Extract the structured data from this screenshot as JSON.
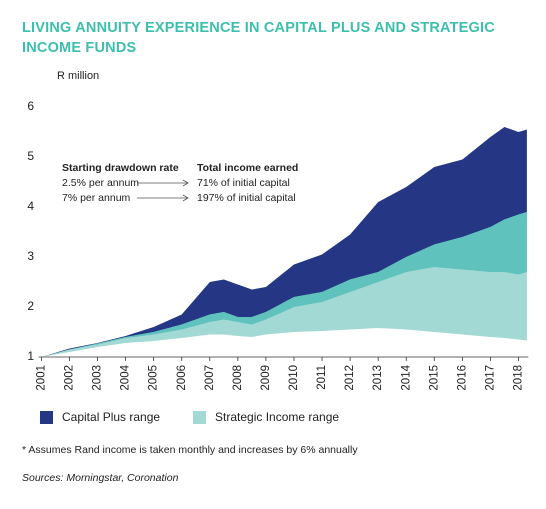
{
  "chart_data": {
    "type": "range-area",
    "title": [
      "LIVING ANNUITY EXPERIENCE IN CAPITAL PLUS AND STRATEGIC",
      "INCOME FUNDS"
    ],
    "y_label": "R million",
    "x": [
      2001,
      2002,
      2003,
      2004,
      2005,
      2006,
      2007,
      2007.5,
      2008,
      2008.5,
      2009,
      2010,
      2011,
      2012,
      2013,
      2014,
      2015,
      2016,
      2017,
      2017.5,
      2018,
      2018.3
    ],
    "series": [
      {
        "name": "Capital Plus range",
        "color": "#253685",
        "low": [
          1.0,
          1.15,
          1.25,
          1.38,
          1.45,
          1.55,
          1.7,
          1.75,
          1.7,
          1.65,
          1.75,
          2.0,
          2.1,
          2.3,
          2.5,
          2.7,
          2.8,
          2.75,
          2.7,
          2.7,
          2.65,
          2.7
        ],
        "high": [
          1.0,
          1.17,
          1.28,
          1.42,
          1.6,
          1.85,
          2.5,
          2.55,
          2.45,
          2.35,
          2.4,
          2.85,
          3.05,
          3.45,
          4.1,
          4.4,
          4.8,
          4.95,
          5.4,
          5.6,
          5.5,
          5.55
        ]
      },
      {
        "name": "Strategic Income range",
        "color": "#a3d9d5",
        "low": [
          1.0,
          1.1,
          1.2,
          1.28,
          1.32,
          1.38,
          1.45,
          1.45,
          1.42,
          1.4,
          1.45,
          1.5,
          1.52,
          1.55,
          1.58,
          1.55,
          1.5,
          1.45,
          1.4,
          1.38,
          1.35,
          1.33
        ],
        "high": [
          1.0,
          1.15,
          1.27,
          1.4,
          1.5,
          1.65,
          1.85,
          1.9,
          1.8,
          1.8,
          1.9,
          2.2,
          2.3,
          2.55,
          2.7,
          3.0,
          3.25,
          3.4,
          3.6,
          3.75,
          3.85,
          3.9
        ]
      }
    ],
    "overlap_color": "#5fc2bd",
    "xlim": [
      2000.9,
      2018.35
    ],
    "xticks": [
      2001,
      2002,
      2003,
      2004,
      2005,
      2006,
      2007,
      2008,
      2009,
      2010,
      2011,
      2012,
      2013,
      2014,
      2015,
      2016,
      2017,
      2018
    ],
    "ylim": [
      1,
      6
    ],
    "yticks": [
      1,
      2,
      3,
      4,
      5,
      6
    ],
    "inset": {
      "headers": [
        "Starting drawdown rate",
        "Total income earned"
      ],
      "rows": [
        [
          "2.5% per annum",
          "71% of initial capital"
        ],
        [
          "7% per annum",
          "197% of initial capital"
        ]
      ]
    },
    "footnote": "* Assumes Rand income is taken monthly and increases by 6% annually",
    "sources": "Sources: Morningstar, Coronation"
  }
}
